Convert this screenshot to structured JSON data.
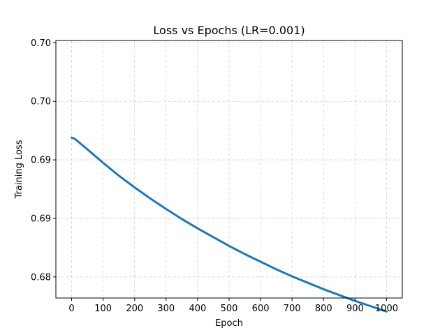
{
  "chart_data": {
    "type": "line",
    "title": "Loss vs Epochs (LR=0.001)",
    "xlabel": "Epoch",
    "ylabel": "Training Loss",
    "xlim": [
      -50,
      1050
    ],
    "ylim": [
      0.6812,
      0.7032
    ],
    "grid": true,
    "legend": "none",
    "colors": {
      "line": "#1f77b4",
      "grid": "#b0b0b0"
    },
    "x_ticks": [
      {
        "value": 0,
        "label": "0"
      },
      {
        "value": 100,
        "label": "100"
      },
      {
        "value": 200,
        "label": "200"
      },
      {
        "value": 300,
        "label": "300"
      },
      {
        "value": 400,
        "label": "400"
      },
      {
        "value": 500,
        "label": "500"
      },
      {
        "value": 600,
        "label": "600"
      },
      {
        "value": 700,
        "label": "700"
      },
      {
        "value": 800,
        "label": "800"
      },
      {
        "value": 900,
        "label": "900"
      },
      {
        "value": 1000,
        "label": "1000"
      }
    ],
    "y_ticks": [
      {
        "value": 0.683,
        "label": "0.68"
      },
      {
        "value": 0.688,
        "label": "0.69"
      },
      {
        "value": 0.693,
        "label": "0.69"
      },
      {
        "value": 0.698,
        "label": "0.70"
      },
      {
        "value": 0.703,
        "label": "0.70"
      }
    ],
    "series": [
      {
        "x": [
          0,
          10,
          50,
          100,
          150,
          200,
          250,
          300,
          350,
          400,
          450,
          500,
          550,
          600,
          650,
          700,
          750,
          800,
          850,
          900,
          950,
          1000
        ],
        "y": [
          0.6949,
          0.6948,
          0.6939,
          0.69275,
          0.69165,
          0.69065,
          0.6897,
          0.6888,
          0.68795,
          0.68715,
          0.6864,
          0.68565,
          0.68495,
          0.6843,
          0.68365,
          0.68305,
          0.6825,
          0.68195,
          0.68145,
          0.68095,
          0.6805,
          0.68005
        ]
      }
    ]
  }
}
